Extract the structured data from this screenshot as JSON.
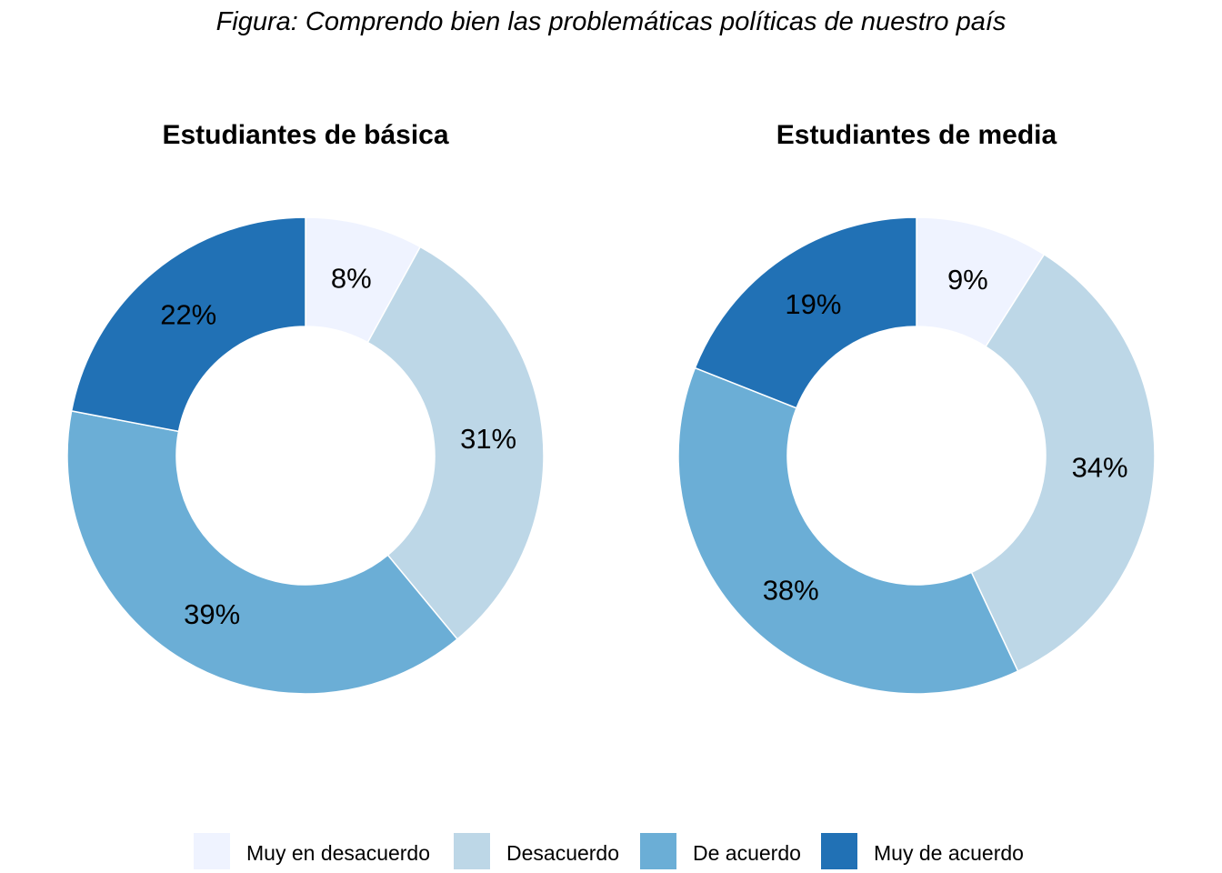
{
  "chart_data": [
    {
      "type": "pie",
      "figure_title": "Figura: Comprendo bien las problemáticas políticas de nuestro país",
      "title": "Estudiantes de básica",
      "donut": true,
      "categories": [
        "Muy en desacuerdo",
        "Desacuerdo",
        "De acuerdo",
        "Muy de acuerdo"
      ],
      "values": [
        8,
        31,
        39,
        22
      ],
      "labels": [
        "8%",
        "31%",
        "39%",
        "22%"
      ],
      "colors": [
        "#EFF3FF",
        "#BDD7E7",
        "#6BAED6",
        "#2171B5"
      ],
      "legend_position": "bottom"
    },
    {
      "type": "pie",
      "figure_title": "Figura: Comprendo bien las problemáticas políticas de nuestro país",
      "title": "Estudiantes de media",
      "donut": true,
      "categories": [
        "Muy en desacuerdo",
        "Desacuerdo",
        "De acuerdo",
        "Muy de acuerdo"
      ],
      "values": [
        9,
        34,
        38,
        19
      ],
      "labels": [
        "9%",
        "34%",
        "38%",
        "19%"
      ],
      "colors": [
        "#EFF3FF",
        "#BDD7E7",
        "#6BAED6",
        "#2171B5"
      ],
      "legend_position": "bottom"
    }
  ],
  "figure": {
    "title": "Figura: Comprendo bien las problemáticas políticas de nuestro país"
  },
  "legend": {
    "items": [
      {
        "label": "Muy en desacuerdo",
        "color": "#EFF3FF"
      },
      {
        "label": "Desacuerdo",
        "color": "#BDD7E7"
      },
      {
        "label": "De acuerdo",
        "color": "#6BAED6"
      },
      {
        "label": "Muy de acuerdo",
        "color": "#2171B5"
      }
    ]
  }
}
